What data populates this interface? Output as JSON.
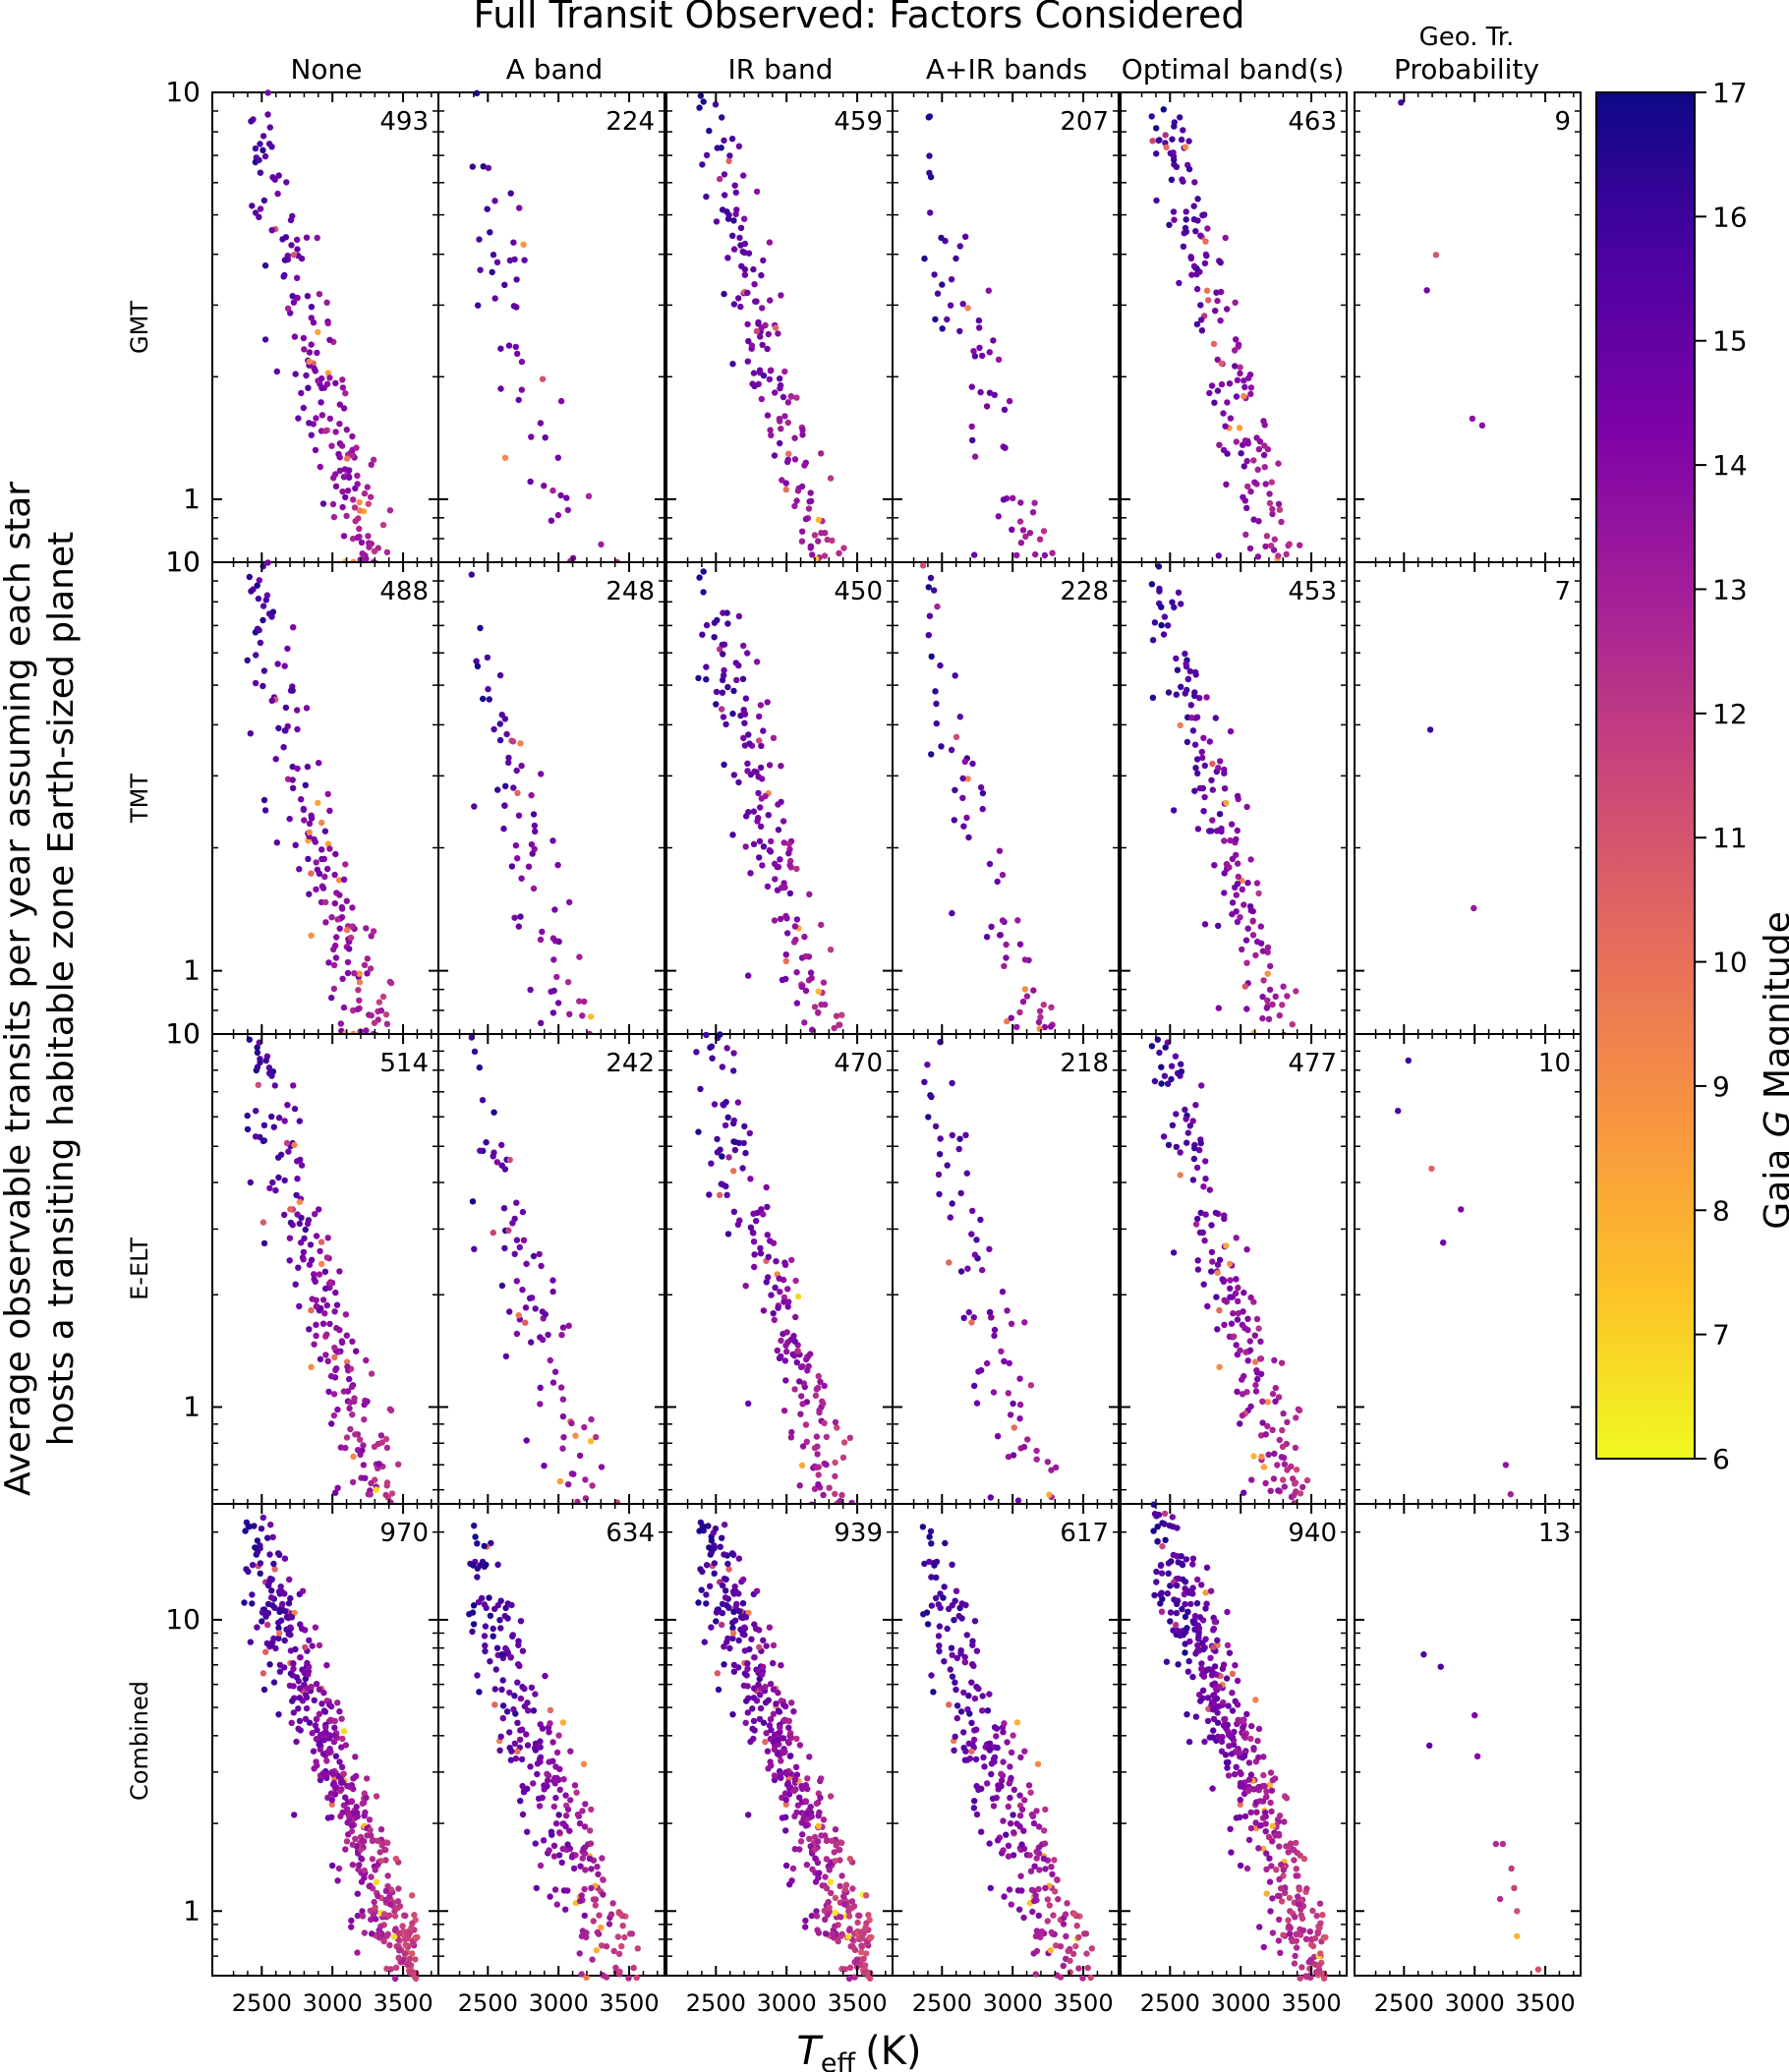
{
  "chart_data": {
    "type": "scatter",
    "title": "Full Transit Observed: Factors Considered",
    "columns": [
      "None",
      "A band",
      "IR band",
      "A+IR bands",
      "Optimal band(s)",
      "Geo. Tr.",
      "Probability"
    ],
    "column_keys": [
      "None",
      "A band",
      "IR band",
      "A+IR bands",
      "Optimal band(s)",
      "Geo. Tr. Probability"
    ],
    "rows": [
      "GMT",
      "TMT",
      "E-ELT",
      "Combined"
    ],
    "ylabel_line1": "Average observable transits per year assuming each star",
    "ylabel_line2": "hosts a transiting habitable zone Earth-sized planet",
    "xlabel_main": "T",
    "xlabel_sub": "eff",
    "xlabel_unit": "(K)",
    "x_ticks": [
      2500,
      3000,
      3500
    ],
    "x_tick_labels": [
      "2500",
      "3000",
      "3500"
    ],
    "xlim": [
      2150,
      3750
    ],
    "counts": [
      [
        "493",
        "224",
        "459",
        "207",
        "463",
        "9"
      ],
      [
        "488",
        "248",
        "450",
        "228",
        "453",
        "7"
      ],
      [
        "514",
        "242",
        "470",
        "218",
        "477",
        "10"
      ],
      [
        "970",
        "634",
        "939",
        "617",
        "940",
        "13"
      ]
    ],
    "row_ylims": [
      [
        0.7,
        10
      ],
      [
        0.7,
        10
      ],
      [
        0.55,
        10
      ],
      [
        0.6,
        25
      ]
    ],
    "row_y_tick_labels": [
      [
        "10",
        "1",
        "10"
      ],
      [
        "10",
        "1",
        "10"
      ],
      [
        "10",
        "1"
      ],
      [
        "10",
        "1"
      ]
    ],
    "colorbar": {
      "label_prefix": "Gaia ",
      "label_italic": "G",
      "label_suffix": " Magnitude",
      "range": [
        6,
        17
      ],
      "ticks": [
        "6",
        "7",
        "8",
        "9",
        "10",
        "11",
        "12",
        "13",
        "14",
        "15",
        "16",
        "17"
      ],
      "colormap": "plasma"
    },
    "representative_series": {
      "panel": "Geo. Tr. Probability x Combined",
      "points": [
        {
          "teff": 2640,
          "transits": 7.6,
          "gmag": 15.6
        },
        {
          "teff": 2760,
          "transits": 6.9,
          "gmag": 15.4
        },
        {
          "teff": 2680,
          "transits": 3.7,
          "gmag": 15.2
        },
        {
          "teff": 3000,
          "transits": 4.7,
          "gmag": 14.2
        },
        {
          "teff": 3020,
          "transits": 3.4,
          "gmag": 14.0
        },
        {
          "teff": 3150,
          "transits": 1.7,
          "gmag": 12.6
        },
        {
          "teff": 3200,
          "transits": 1.7,
          "gmag": 12.4
        },
        {
          "teff": 3280,
          "transits": 1.2,
          "gmag": 11.6
        },
        {
          "teff": 3300,
          "transits": 1.0,
          "gmag": 11.2
        },
        {
          "teff": 3300,
          "transits": 0.82,
          "gmag": 7.8
        },
        {
          "teff": 3450,
          "transits": 0.63,
          "gmag": 11.0
        },
        {
          "teff": 3180,
          "transits": 1.1,
          "gmag": 12.5
        },
        {
          "teff": 3260,
          "transits": 1.4,
          "gmag": 11.9
        }
      ]
    }
  }
}
